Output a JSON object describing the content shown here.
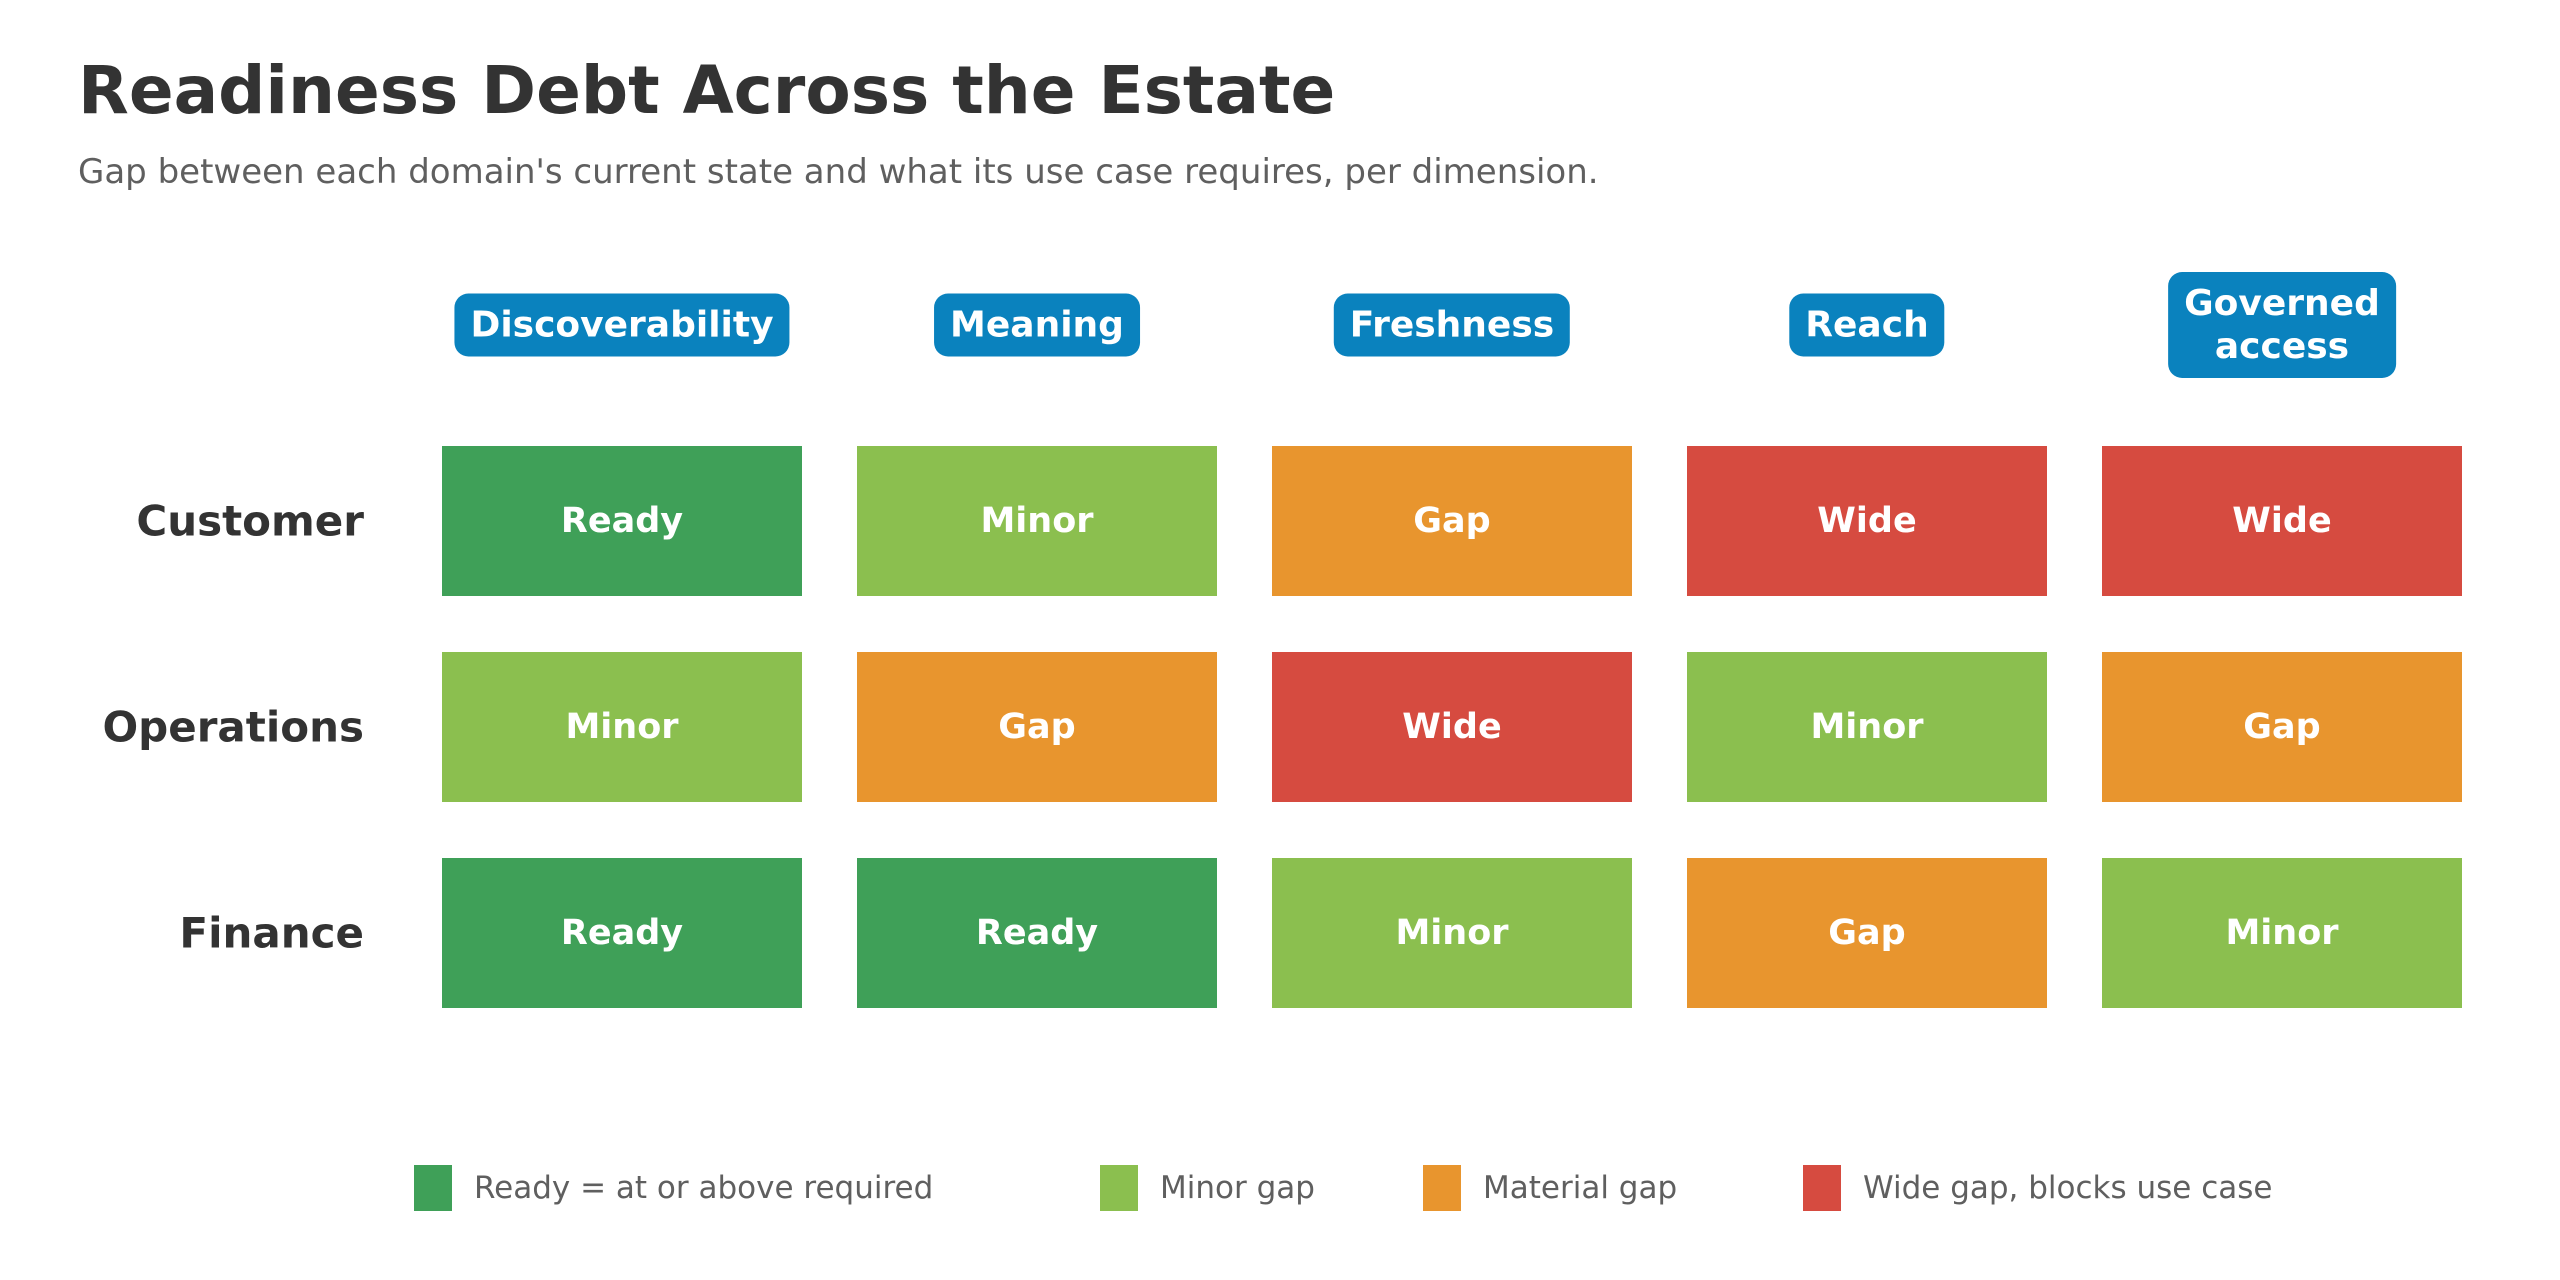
{
  "header": {
    "title": "Readiness Debt Across the Estate",
    "subtitle": "Gap between each domain's current state and what its use case requires, per dimension."
  },
  "colors": {
    "header_bg": "#0a82be",
    "Ready": "#3fa058",
    "Minor": "#8bbf4f",
    "Gap": "#e8952e",
    "Wide": "#d64b40"
  },
  "chart_data": {
    "type": "heatmap",
    "columns": [
      "Discoverability",
      "Meaning",
      "Freshness",
      "Reach",
      "Governed\naccess"
    ],
    "rows": [
      "Customer",
      "Operations",
      "Finance"
    ],
    "values": [
      [
        "Ready",
        "Minor",
        "Gap",
        "Wide",
        "Wide"
      ],
      [
        "Minor",
        "Gap",
        "Wide",
        "Minor",
        "Gap"
      ],
      [
        "Ready",
        "Ready",
        "Minor",
        "Gap",
        "Minor"
      ]
    ],
    "legend": [
      {
        "key": "Ready",
        "label": "Ready = at or above required"
      },
      {
        "key": "Minor",
        "label": "Minor gap"
      },
      {
        "key": "Gap",
        "label": "Material gap"
      },
      {
        "key": "Wide",
        "label": "Wide gap, blocks use case"
      }
    ],
    "legend_position": "bottom"
  }
}
